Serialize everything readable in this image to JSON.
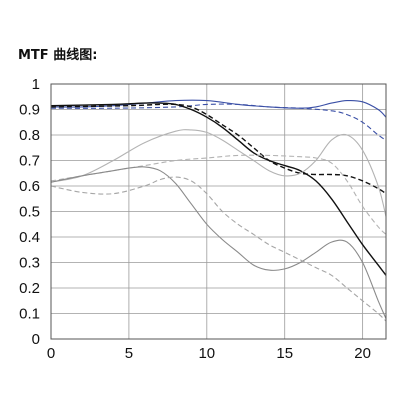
{
  "chart_data": {
    "type": "line",
    "title": "MTF 曲线图:",
    "xlabel": "",
    "ylabel": "",
    "xlim": [
      0,
      21.5
    ],
    "ylim": [
      0,
      1
    ],
    "x_ticks": [
      "0",
      "5",
      "10",
      "15",
      "20"
    ],
    "y_ticks": [
      "0",
      "0.1",
      "0.2",
      "0.3",
      "0.4",
      "0.5",
      "0.6",
      "0.7",
      "0.8",
      "0.9",
      "1"
    ],
    "grid": true,
    "legend": "none",
    "series": [
      {
        "color": "#3a4fa6",
        "dash": "solid",
        "points": [
          [
            0,
            0.91
          ],
          [
            2,
            0.91
          ],
          [
            4,
            0.915
          ],
          [
            6,
            0.925
          ],
          [
            8,
            0.935
          ],
          [
            10,
            0.935
          ],
          [
            12,
            0.92
          ],
          [
            14,
            0.91
          ],
          [
            16,
            0.905
          ],
          [
            17,
            0.91
          ],
          [
            18,
            0.925
          ],
          [
            19,
            0.935
          ],
          [
            20,
            0.93
          ],
          [
            21,
            0.9
          ],
          [
            21.5,
            0.87
          ]
        ]
      },
      {
        "color": "#3a4fa6",
        "dash": "dashed",
        "points": [
          [
            0,
            0.905
          ],
          [
            4,
            0.905
          ],
          [
            8,
            0.91
          ],
          [
            10,
            0.92
          ],
          [
            12,
            0.92
          ],
          [
            14,
            0.91
          ],
          [
            16,
            0.905
          ],
          [
            18,
            0.895
          ],
          [
            19,
            0.88
          ],
          [
            20,
            0.85
          ],
          [
            21,
            0.8
          ],
          [
            21.5,
            0.78
          ]
        ]
      },
      {
        "color": "#111111",
        "dash": "solid",
        "points": [
          [
            0,
            0.915
          ],
          [
            4,
            0.92
          ],
          [
            6,
            0.925
          ],
          [
            7,
            0.925
          ],
          [
            8,
            0.92
          ],
          [
            9,
            0.9
          ],
          [
            10,
            0.87
          ],
          [
            11,
            0.83
          ],
          [
            12,
            0.78
          ],
          [
            13,
            0.73
          ],
          [
            14,
            0.7
          ],
          [
            15,
            0.68
          ],
          [
            16,
            0.66
          ],
          [
            17,
            0.62
          ],
          [
            18,
            0.55
          ],
          [
            19,
            0.46
          ],
          [
            20,
            0.37
          ],
          [
            21,
            0.29
          ],
          [
            21.5,
            0.25
          ]
        ]
      },
      {
        "color": "#111111",
        "dash": "dashed",
        "points": [
          [
            0,
            0.91
          ],
          [
            5,
            0.915
          ],
          [
            7,
            0.92
          ],
          [
            8,
            0.92
          ],
          [
            9,
            0.91
          ],
          [
            10,
            0.88
          ],
          [
            11,
            0.84
          ],
          [
            12,
            0.8
          ],
          [
            13,
            0.75
          ],
          [
            14,
            0.7
          ],
          [
            15,
            0.67
          ],
          [
            16,
            0.65
          ],
          [
            17,
            0.645
          ],
          [
            18,
            0.645
          ],
          [
            19,
            0.64
          ],
          [
            20,
            0.62
          ],
          [
            21,
            0.59
          ],
          [
            21.5,
            0.57
          ]
        ]
      },
      {
        "color": "#b3b3b3",
        "dash": "solid",
        "points": [
          [
            0,
            0.615
          ],
          [
            2,
            0.64
          ],
          [
            4,
            0.7
          ],
          [
            6,
            0.77
          ],
          [
            8,
            0.815
          ],
          [
            9,
            0.82
          ],
          [
            10,
            0.81
          ],
          [
            11,
            0.78
          ],
          [
            12,
            0.74
          ],
          [
            13,
            0.7
          ],
          [
            14,
            0.66
          ],
          [
            15,
            0.64
          ],
          [
            16,
            0.65
          ],
          [
            17,
            0.7
          ],
          [
            18,
            0.78
          ],
          [
            19,
            0.8
          ],
          [
            20,
            0.74
          ],
          [
            21,
            0.6
          ],
          [
            21.5,
            0.48
          ]
        ]
      },
      {
        "color": "#b3b3b3",
        "dash": "dashed",
        "points": [
          [
            0,
            0.62
          ],
          [
            2,
            0.64
          ],
          [
            4,
            0.66
          ],
          [
            6,
            0.68
          ],
          [
            8,
            0.7
          ],
          [
            10,
            0.71
          ],
          [
            12,
            0.72
          ],
          [
            14,
            0.72
          ],
          [
            16,
            0.715
          ],
          [
            17,
            0.71
          ],
          [
            18,
            0.69
          ],
          [
            19,
            0.62
          ],
          [
            20,
            0.52
          ],
          [
            21,
            0.44
          ],
          [
            21.5,
            0.41
          ]
        ]
      },
      {
        "color": "#8a8a8a",
        "dash": "solid",
        "points": [
          [
            0,
            0.615
          ],
          [
            2,
            0.64
          ],
          [
            4,
            0.66
          ],
          [
            5,
            0.67
          ],
          [
            6,
            0.675
          ],
          [
            7,
            0.66
          ],
          [
            8,
            0.61
          ],
          [
            9,
            0.53
          ],
          [
            10,
            0.45
          ],
          [
            11,
            0.39
          ],
          [
            12,
            0.34
          ],
          [
            13,
            0.29
          ],
          [
            14,
            0.27
          ],
          [
            15,
            0.275
          ],
          [
            16,
            0.3
          ],
          [
            17,
            0.34
          ],
          [
            18,
            0.38
          ],
          [
            19,
            0.38
          ],
          [
            20,
            0.3
          ],
          [
            21,
            0.15
          ],
          [
            21.5,
            0.08
          ]
        ]
      },
      {
        "color": "#a6a6a6",
        "dash": "dashed",
        "points": [
          [
            0,
            0.6
          ],
          [
            2,
            0.575
          ],
          [
            4,
            0.57
          ],
          [
            6,
            0.6
          ],
          [
            7,
            0.625
          ],
          [
            8,
            0.635
          ],
          [
            9,
            0.62
          ],
          [
            10,
            0.57
          ],
          [
            11,
            0.5
          ],
          [
            12,
            0.45
          ],
          [
            13,
            0.41
          ],
          [
            14,
            0.37
          ],
          [
            15,
            0.34
          ],
          [
            16,
            0.31
          ],
          [
            17,
            0.28
          ],
          [
            18,
            0.25
          ],
          [
            19,
            0.2
          ],
          [
            20,
            0.15
          ],
          [
            21,
            0.1
          ],
          [
            21.5,
            0.07
          ]
        ]
      }
    ]
  }
}
